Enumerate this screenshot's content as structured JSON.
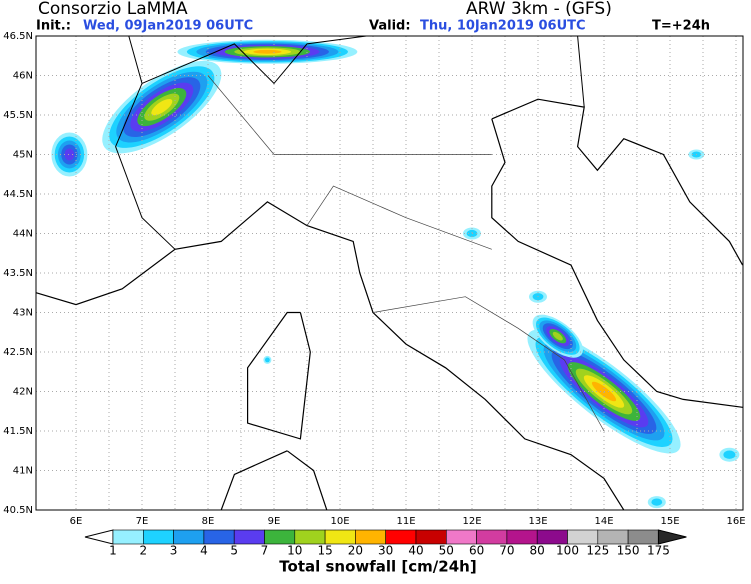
{
  "header": {
    "title": "Consorzio LaMMA",
    "init_label": "Init.:",
    "init_value": "Wed, 09Jan2019 06UTC",
    "model": "ARW 3km - (GFS)",
    "valid_label": "Valid:",
    "valid_value": "Thu, 10Jan2019 06UTC",
    "lead": "T=+24h"
  },
  "map": {
    "lat_labels": [
      "46.5N",
      "46N",
      "45.5N",
      "45N",
      "44.5N",
      "44N",
      "43.5N",
      "43N",
      "42.5N",
      "42N",
      "41.5N",
      "41N",
      "40.5N"
    ],
    "lon_labels": [
      "6E",
      "7E",
      "8E",
      "9E",
      "10E",
      "11E",
      "12E",
      "13E",
      "14E",
      "15E",
      "16E"
    ]
  },
  "colorbar": {
    "labels": [
      "1",
      "2",
      "3",
      "4",
      "5",
      "7",
      "10",
      "15",
      "20",
      "30",
      "40",
      "50",
      "60",
      "70",
      "80",
      "100",
      "125",
      "150",
      "175"
    ],
    "colors": [
      "#ffffff",
      "#96f0ff",
      "#1ed2ff",
      "#1ea0f0",
      "#2864e6",
      "#5a3cf0",
      "#3cb43c",
      "#a0d21e",
      "#f0e614",
      "#ffb400",
      "#ff0000",
      "#c80000",
      "#f078c8",
      "#d23ca0",
      "#b4148c",
      "#8c0a8c",
      "#d2d2d2",
      "#b4b4b4",
      "#8c8c8c",
      "#646464",
      "#3c3c3c",
      "#282828"
    ],
    "title": "Total snowfall [cm/24h]"
  }
}
